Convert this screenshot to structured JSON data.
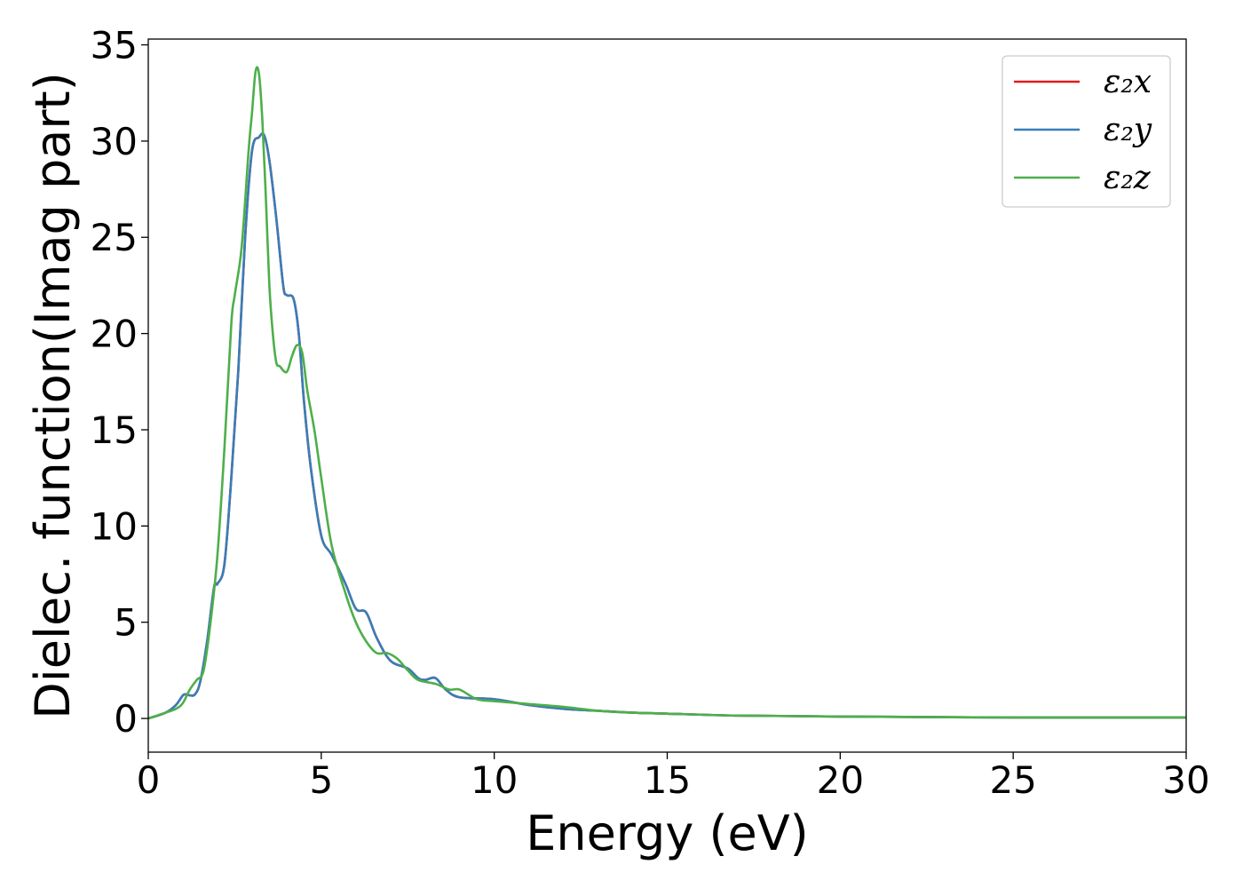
{
  "chart_data": {
    "type": "line",
    "title": "",
    "xlabel": "Energy (eV)",
    "ylabel": "Dielec. function(Imag part)",
    "xlim": [
      0,
      30
    ],
    "ylim": [
      -1.75,
      35.3
    ],
    "xticks": [
      "0",
      "5",
      "10",
      "15",
      "20",
      "25",
      "30"
    ],
    "yticks": [
      "0",
      "5",
      "10",
      "15",
      "20",
      "25",
      "30",
      "35"
    ],
    "grid": false,
    "legend_position": "top-right",
    "series": [
      {
        "name": "ε₂x",
        "color": "#e41a1c",
        "x": [
          0,
          0.5,
          0.8,
          1.0,
          1.1,
          1.2,
          1.35,
          1.5,
          1.7,
          1.9,
          2.0,
          2.2,
          2.4,
          2.6,
          2.8,
          3.0,
          3.2,
          3.35,
          3.5,
          3.7,
          3.9,
          4.0,
          4.2,
          4.35,
          4.5,
          4.7,
          5.0,
          5.3,
          5.7,
          6.0,
          6.3,
          6.6,
          7.0,
          7.5,
          7.8,
          8.0,
          8.3,
          8.6,
          9.0,
          10.0,
          11.0,
          12.0,
          13.0,
          14.0,
          15.0,
          17.0,
          20.0,
          25.0,
          30.0
        ],
        "y": [
          0,
          0.3,
          0.7,
          1.2,
          1.25,
          1.2,
          1.25,
          1.9,
          4.0,
          6.8,
          7.0,
          8.0,
          12.5,
          18.0,
          25.0,
          29.5,
          30.2,
          30.3,
          29.0,
          26.0,
          22.5,
          22.0,
          21.8,
          20.0,
          16.5,
          13.0,
          9.5,
          8.5,
          7.0,
          5.7,
          5.5,
          4.2,
          3.0,
          2.6,
          2.1,
          2.0,
          2.1,
          1.5,
          1.1,
          1.0,
          0.7,
          0.5,
          0.4,
          0.3,
          0.25,
          0.15,
          0.1,
          0.05,
          0.05
        ]
      },
      {
        "name": "ε₂y",
        "color": "#377eb8",
        "x": [
          0,
          0.5,
          0.8,
          1.0,
          1.1,
          1.2,
          1.35,
          1.5,
          1.7,
          1.9,
          2.0,
          2.2,
          2.4,
          2.6,
          2.8,
          3.0,
          3.2,
          3.35,
          3.5,
          3.7,
          3.9,
          4.0,
          4.2,
          4.35,
          4.5,
          4.7,
          5.0,
          5.3,
          5.7,
          6.0,
          6.3,
          6.6,
          7.0,
          7.5,
          7.8,
          8.0,
          8.3,
          8.6,
          9.0,
          10.0,
          11.0,
          12.0,
          13.0,
          14.0,
          15.0,
          17.0,
          20.0,
          25.0,
          30.0
        ],
        "y": [
          0,
          0.3,
          0.7,
          1.2,
          1.25,
          1.2,
          1.25,
          1.9,
          4.0,
          6.8,
          7.0,
          8.0,
          12.5,
          18.0,
          25.0,
          29.5,
          30.2,
          30.3,
          29.0,
          26.0,
          22.5,
          22.0,
          21.8,
          20.0,
          16.5,
          13.0,
          9.5,
          8.5,
          7.0,
          5.7,
          5.5,
          4.2,
          3.0,
          2.6,
          2.1,
          2.0,
          2.1,
          1.5,
          1.1,
          1.0,
          0.7,
          0.5,
          0.4,
          0.3,
          0.25,
          0.15,
          0.1,
          0.05,
          0.05
        ]
      },
      {
        "name": "ε₂z",
        "color": "#4daf4a",
        "x": [
          0,
          0.5,
          0.8,
          1.0,
          1.2,
          1.4,
          1.6,
          1.8,
          2.0,
          2.2,
          2.4,
          2.5,
          2.7,
          2.9,
          3.0,
          3.1,
          3.2,
          3.3,
          3.4,
          3.5,
          3.6,
          3.7,
          3.8,
          4.0,
          4.15,
          4.3,
          4.45,
          4.6,
          4.8,
          5.0,
          5.3,
          5.7,
          6.0,
          6.3,
          6.6,
          6.9,
          7.2,
          7.5,
          7.8,
          8.3,
          8.7,
          9.0,
          9.5,
          10.0,
          11.0,
          12.0,
          13.0,
          14.0,
          15.0,
          17.0,
          20.0,
          25.0,
          30.0
        ],
        "y": [
          0,
          0.3,
          0.5,
          0.8,
          1.5,
          2.0,
          2.5,
          5.0,
          8.5,
          14.0,
          20.5,
          22.0,
          24.5,
          29.5,
          31.5,
          33.6,
          33.5,
          31.0,
          27.0,
          22.5,
          20.0,
          18.5,
          18.3,
          18.0,
          18.8,
          19.4,
          19.0,
          17.0,
          15.0,
          12.5,
          9.0,
          6.5,
          5.0,
          4.0,
          3.4,
          3.4,
          3.1,
          2.5,
          2.0,
          1.8,
          1.5,
          1.5,
          1.0,
          0.9,
          0.75,
          0.6,
          0.4,
          0.3,
          0.25,
          0.15,
          0.1,
          0.05,
          0.05
        ]
      }
    ]
  }
}
